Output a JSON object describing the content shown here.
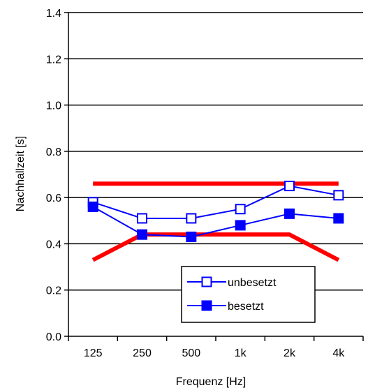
{
  "chart_data": {
    "type": "line",
    "categories": [
      "125",
      "250",
      "500",
      "1k",
      "2k",
      "4k"
    ],
    "xlabel": "Frequenz [Hz]",
    "ylabel": "Nachhallzeit [s]",
    "ylim": [
      0,
      1.4
    ],
    "yticks": [
      "0.0",
      "0.2",
      "0.4",
      "0.6",
      "0.8",
      "1.0",
      "1.2",
      "1.4"
    ],
    "grid": true,
    "legend_position": "bottom-right",
    "series": [
      {
        "name": "unbesetzt",
        "marker": "open-square",
        "color": "#0000ff",
        "values": [
          0.58,
          0.51,
          0.51,
          0.55,
          0.65,
          0.61
        ]
      },
      {
        "name": "besetzt",
        "marker": "filled-square",
        "color": "#0000ff",
        "values": [
          0.56,
          0.44,
          0.43,
          0.48,
          0.53,
          0.51
        ]
      }
    ],
    "tolerance_band": {
      "color": "#ff0000",
      "upper": [
        [
          125,
          0.66
        ],
        [
          4000,
          0.66
        ]
      ],
      "lower": [
        [
          125,
          0.33
        ],
        [
          250,
          0.44
        ],
        [
          2000,
          0.44
        ],
        [
          4000,
          0.33
        ]
      ]
    }
  }
}
